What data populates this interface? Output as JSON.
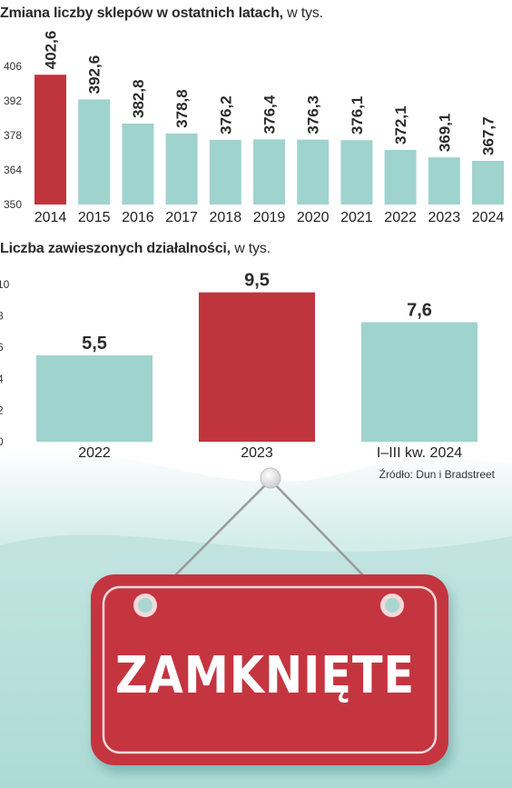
{
  "colors": {
    "highlight": "#c0343e",
    "bar": "#9fd3cd",
    "sign_red": "#c4363f",
    "sign_border": "#f3d9da",
    "background_teal": "#b9e0dc"
  },
  "chart_data": [
    {
      "type": "bar",
      "title": "Zmiana liczby sklepów w ostatnich latach,",
      "unit": "w tys.",
      "categories": [
        "2014",
        "2015",
        "2016",
        "2017",
        "2018",
        "2019",
        "2020",
        "2021",
        "2022",
        "2023",
        "2024"
      ],
      "values": [
        402.6,
        392.6,
        382.8,
        378.8,
        376.2,
        376.4,
        376.3,
        376.1,
        372.1,
        369.1,
        367.7
      ],
      "value_labels": [
        "402,6",
        "392,6",
        "382,8",
        "378,8",
        "376,2",
        "376,4",
        "376,3",
        "376,1",
        "372,1",
        "369,1",
        "367,7"
      ],
      "highlight_index": 0,
      "ylim": [
        350,
        406
      ],
      "yticks": [
        350,
        364,
        378,
        392,
        406
      ],
      "grid": false
    },
    {
      "type": "bar",
      "title": "Liczba zawieszonych działalności,",
      "unit": "w tys.",
      "categories": [
        "2022",
        "2023",
        "I–III kw. 2024"
      ],
      "values": [
        5.5,
        9.5,
        7.6
      ],
      "value_labels": [
        "5,5",
        "9,5",
        "7,6"
      ],
      "highlight_index": 1,
      "ylim": [
        0,
        10
      ],
      "yticks": [
        0,
        2,
        4,
        6,
        8,
        10
      ],
      "grid": false
    }
  ],
  "source": "Źródło: Dun i Bradstreet",
  "sign": {
    "text": "ZAMKNIĘTE",
    "icon": "closed-sign-icon"
  }
}
